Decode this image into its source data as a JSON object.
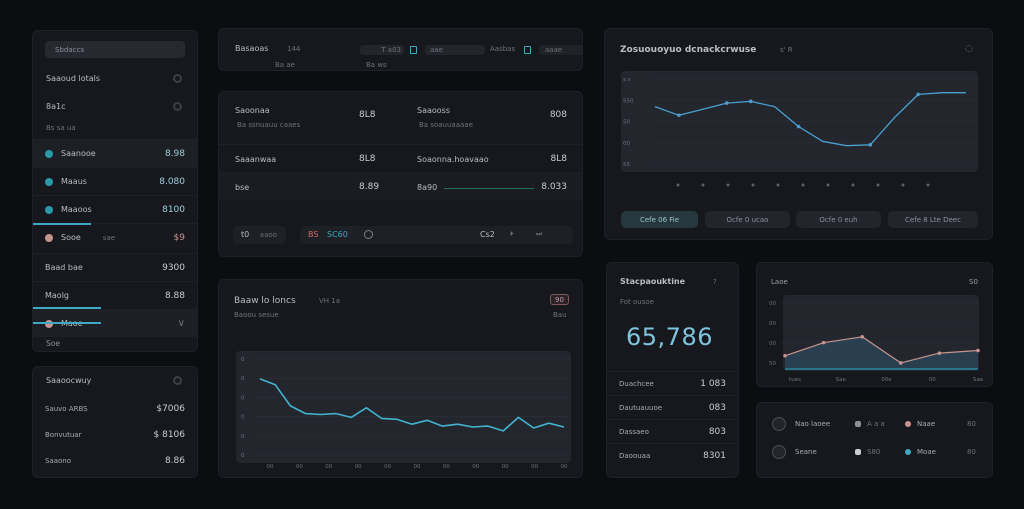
{
  "colors": {
    "accent": "#3fa9c4",
    "line": "#4a9fd0",
    "pink": "#c8948f",
    "teal": "#2a9aa8"
  },
  "sidebar": {
    "search_placeholder": "Sbdaccs",
    "section1": "Saaoud lotals",
    "section2": "8a1c",
    "sub": "Bs sa ua",
    "items": [
      {
        "label": "Saanooe",
        "value": "8.98",
        "icon": "teal"
      },
      {
        "label": "Maaus",
        "value": "8.080",
        "icon": "teal"
      },
      {
        "label": "Maaoos",
        "value": "8100",
        "icon": "teal"
      },
      {
        "label": "Sooe",
        "extra": "sae",
        "value": "$9",
        "icon": "pink"
      },
      {
        "label": "Baad bae",
        "value": "9300"
      },
      {
        "label": "Maolg",
        "value": "8.88"
      },
      {
        "label": "Maoe",
        "icon": "pink"
      }
    ],
    "footer": "Soe"
  },
  "summary": {
    "title": "Saaoocwuy",
    "rows": [
      {
        "label": "Sauvo ARBS",
        "value": "$7006"
      },
      {
        "label": "Bonvutuar",
        "value": "$ 8106"
      },
      {
        "label": "Saaono",
        "value": "8.86"
      }
    ]
  },
  "topbar": {
    "title": "Basaoas",
    "title_extra": "144",
    "sub": "Ba ae",
    "field1": "T a03",
    "field2": "aae",
    "field3": "Aasbas",
    "field4": "aaae",
    "meta": "Ba ws"
  },
  "table": {
    "rows": [
      {
        "l1": "Saoonaa",
        "l1sub": "Ba ssnuauu caaes",
        "v1": "8L8",
        "l2": "Saaooss",
        "l2sub": "Ba soauuaaaae",
        "v2": "808"
      },
      {
        "l1": "Saaanwaa",
        "v1": "8L8",
        "l2": "Soaonna.hoavaao",
        "v2": "8L8"
      },
      {
        "l1": "bse",
        "v1": "8.89",
        "l2": "8a90",
        "v2": "8.033"
      }
    ],
    "footer": {
      "chip1_num": "t0",
      "chip1": "aaoo",
      "chip2_a": "BS",
      "chip2_b": "SC60",
      "page": "Cs2"
    }
  },
  "chart_main": {
    "title": "Baaw lo loncs",
    "title_extra": "VH 1a",
    "sub": "Baoou sesue",
    "badge": "90",
    "badge_sub": "Bau"
  },
  "chart_top": {
    "title": "Zosuouoyuo dcnackcrwuse",
    "title_extra": "s' R",
    "buttons": [
      "Cefe 06 Fie",
      "Ocfe 0 ucao",
      "Ocfe 0 euh",
      "Cefe 8 Lte Deec"
    ]
  },
  "kpi": {
    "title": "Stacpaouktine",
    "title_extra": "?",
    "sub": "Fot ousoe",
    "value": "65,786",
    "rows": [
      {
        "label": "Duachcee",
        "value": "1 083"
      },
      {
        "label": "Dautuauuoe",
        "value": "083"
      },
      {
        "label": "Dassaeo",
        "value": "803"
      },
      {
        "label": "Daoouaa",
        "value": "8301"
      }
    ]
  },
  "small_chart": {
    "title": "Laoe",
    "badge": "S0"
  },
  "legend": {
    "items": [
      {
        "label": "Nao laoee",
        "b": "A a a",
        "c": "Naae",
        "d": "80"
      },
      {
        "label": "Seane",
        "b": "S80",
        "c": "Moae",
        "d": "80"
      }
    ]
  },
  "chart_data": [
    {
      "id": "top",
      "type": "line",
      "ylim": [
        0,
        100
      ],
      "y_ticks": [
        "s.s",
        "550",
        "50",
        "00",
        "55"
      ],
      "values": [
        73,
        63,
        70,
        77,
        79,
        73,
        50,
        33,
        28,
        29,
        60,
        87,
        89,
        89
      ],
      "markers": [
        1,
        3,
        4,
        6,
        9,
        11
      ]
    },
    {
      "id": "main",
      "type": "line",
      "ylim": [
        0,
        100
      ],
      "y_ticks": [
        "0",
        "0",
        "0",
        "0",
        "0",
        "0"
      ],
      "x_ticks": [
        "00",
        "00",
        "00",
        "00",
        "00",
        "00",
        "00",
        "00",
        "00",
        "00",
        "00"
      ],
      "values": [
        85,
        79,
        57,
        49,
        48,
        49,
        45,
        55,
        44,
        43,
        38,
        42,
        36,
        38,
        35,
        36,
        31,
        45,
        34,
        39,
        35
      ]
    },
    {
      "id": "small",
      "type": "area",
      "ylim": [
        0,
        100
      ],
      "y_ticks": [
        "00",
        "00",
        "00",
        "50"
      ],
      "x_ticks": [
        "tues",
        "Sae",
        "00e",
        "00",
        "Sae"
      ],
      "values": [
        21,
        41,
        50,
        10,
        25,
        29
      ]
    }
  ]
}
